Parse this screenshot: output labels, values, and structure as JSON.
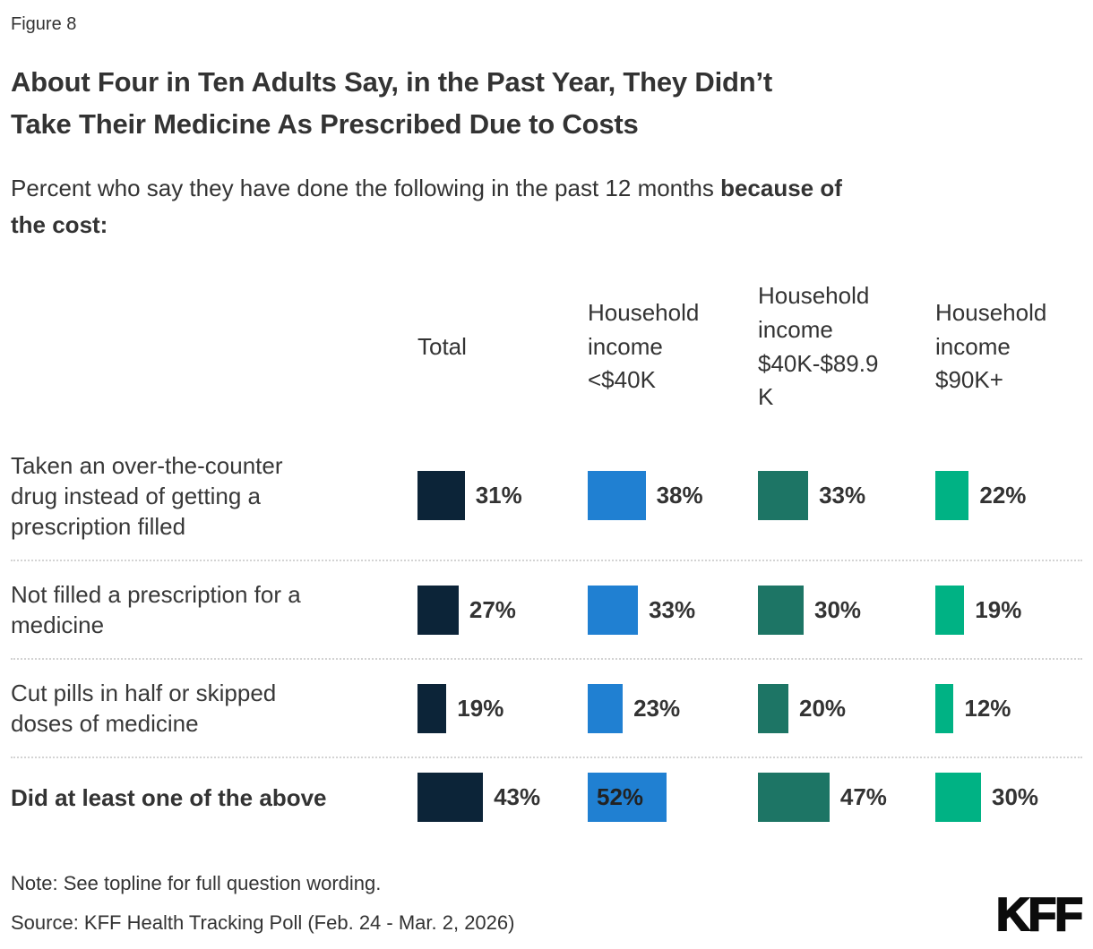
{
  "figure_label": "Figure 8",
  "title": {
    "line1": "About Four in Ten Adults Say, in the Past Year, They Didn’t",
    "line2": "Take Their Medicine As Prescribed Due to Costs"
  },
  "subtitle": {
    "regular": "Percent who say they have done the following in the past 12 months ",
    "bold": "because of the cost:"
  },
  "chart_data": {
    "type": "bar",
    "orientation": "horizontal",
    "value_unit": "%",
    "categories": [
      "Taken an over-the-counter drug instead of getting a prescription filled",
      "Not filled a prescription for a medicine",
      "Cut pills in half or skipped doses of medicine",
      "Did at least one of the above"
    ],
    "bold_category_index": 3,
    "series": [
      {
        "name": "Total",
        "color": "#0C2438",
        "values": [
          31,
          27,
          19,
          43
        ]
      },
      {
        "name": "Household income <$40K",
        "color": "#2080D2",
        "values": [
          38,
          33,
          23,
          52
        ]
      },
      {
        "name": "Household income $40K-$89.9K",
        "color": "#1D7565",
        "values": [
          33,
          30,
          20,
          47
        ]
      },
      {
        "name": "Household income $90K+",
        "color": "#00B284",
        "values": [
          22,
          19,
          12,
          30
        ]
      }
    ],
    "value_label_format": "{v}%",
    "inside_value_labels": [
      [
        3,
        1
      ]
    ],
    "xlim": [
      0,
      100
    ],
    "grid": false,
    "legend": "column-headers"
  },
  "note": "Note: See topline for full question wording.",
  "source": "Source: KFF Health Tracking Poll (Feb. 24 - Mar. 2, 2026)",
  "logo_text": "KFF"
}
